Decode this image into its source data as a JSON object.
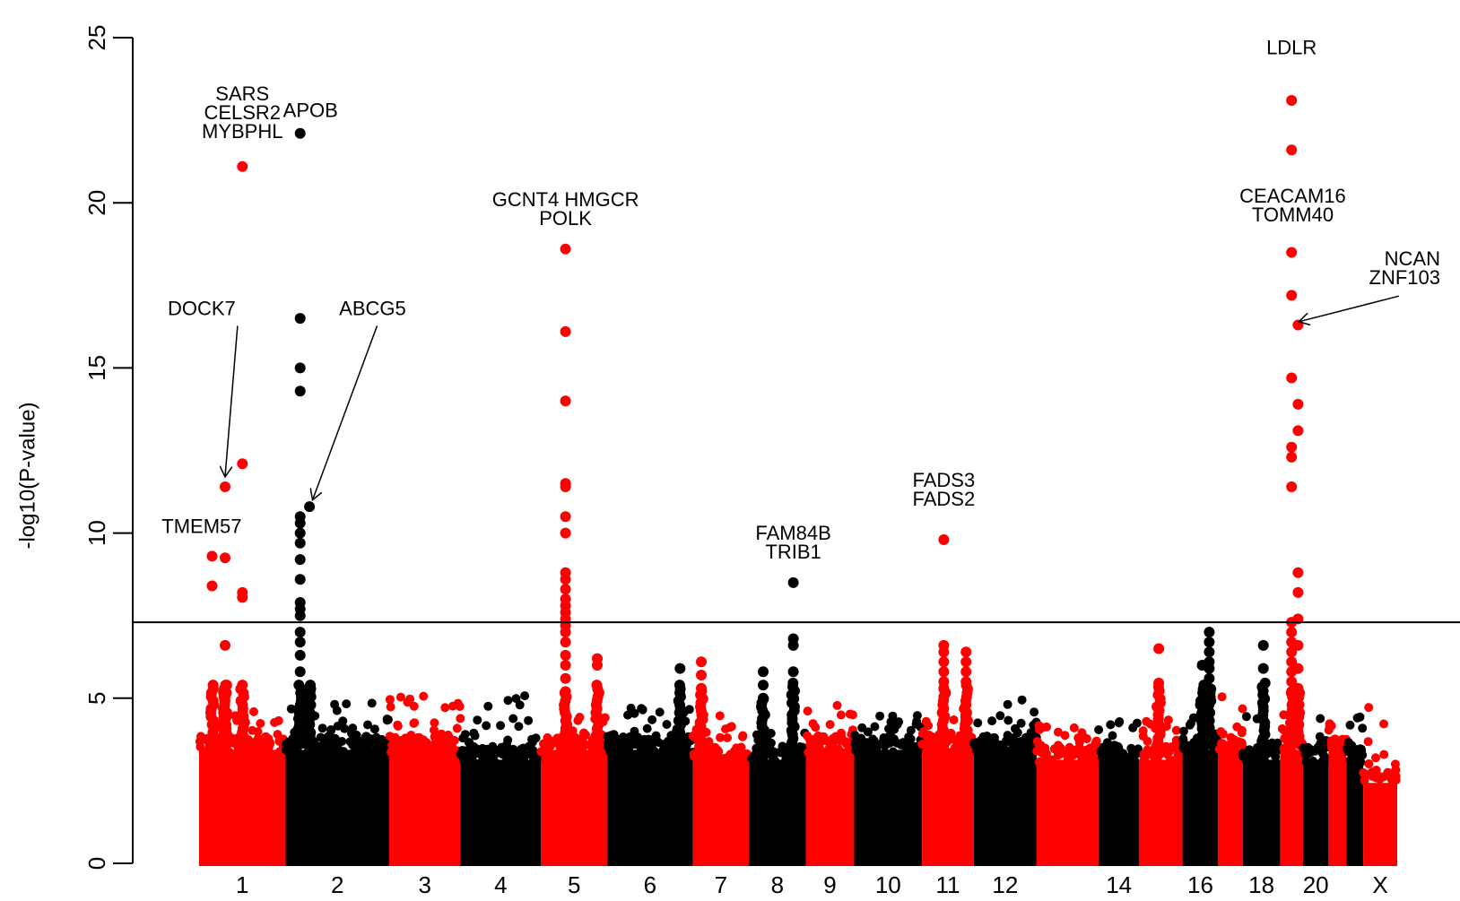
{
  "chart_data": {
    "type": "scatter",
    "subtype": "manhattan",
    "title": "",
    "xlabel": "",
    "ylabel": "-log10(P-value)",
    "ylim": [
      0,
      25
    ],
    "yticks": [
      0,
      5,
      10,
      15,
      20,
      25
    ],
    "grid": false,
    "significance_line": 7.3,
    "colors": {
      "odd": "#ff0000",
      "even": "#000000",
      "line": "#000000"
    },
    "chromosomes": [
      {
        "chrom": "1",
        "tick_label": "1",
        "color": "#ff0000",
        "baseline_max": 3.6,
        "scatter_max": 4.6,
        "peaks": [
          {
            "pos": 0.3,
            "values": [
              11.4,
              6.6
            ]
          },
          {
            "pos": 0.5,
            "values": [
              21.1,
              12.1,
              8.2,
              8.05,
              5.4
            ]
          },
          {
            "pos": 0.15,
            "values": [
              9.3,
              8.4
            ]
          },
          {
            "pos": 0.3,
            "values": [
              9.25
            ]
          }
        ]
      },
      {
        "chrom": "2",
        "tick_label": "2",
        "color": "#000000",
        "baseline_max": 3.6,
        "scatter_max": 4.9,
        "peaks": [
          {
            "pos": 0.14,
            "values": [
              22.1,
              16.5,
              15.0,
              14.3,
              10.5,
              10.3,
              10.0,
              9.7,
              9.2,
              8.6,
              7.9,
              7.7,
              7.5,
              7.0,
              6.7,
              6.3,
              5.8
            ]
          },
          {
            "pos": 0.23,
            "values": [
              10.8
            ]
          }
        ]
      },
      {
        "chrom": "3",
        "tick_label": "3",
        "color": "#ff0000",
        "baseline_max": 3.6,
        "scatter_max": 5.1,
        "peaks": []
      },
      {
        "chrom": "4",
        "tick_label": "4",
        "color": "#000000",
        "baseline_max": 3.3,
        "scatter_max": 5.5,
        "peaks": []
      },
      {
        "chrom": "5",
        "tick_label": "5",
        "color": "#ff0000",
        "baseline_max": 3.6,
        "scatter_max": 4.5,
        "peaks": [
          {
            "pos": 0.37,
            "values": [
              18.6,
              16.1,
              14.0,
              11.5,
              11.4,
              10.5,
              10.0,
              8.8,
              8.6,
              8.3,
              8.0,
              7.8,
              7.6,
              7.4,
              7.2,
              7.0,
              6.7,
              6.3,
              6.0,
              5.6,
              5.2
            ]
          },
          {
            "pos": 0.85,
            "values": [
              6.2,
              6.0
            ]
          }
        ]
      },
      {
        "chrom": "6",
        "tick_label": "6",
        "color": "#000000",
        "baseline_max": 3.6,
        "scatter_max": 4.8,
        "peaks": [
          {
            "pos": 0.85,
            "values": [
              5.9
            ]
          }
        ]
      },
      {
        "chrom": "7",
        "tick_label": "7",
        "color": "#ff0000",
        "baseline_max": 3.3,
        "scatter_max": 4.5,
        "peaks": [
          {
            "pos": 0.15,
            "values": [
              6.1,
              5.7,
              5.3
            ]
          }
        ]
      },
      {
        "chrom": "8",
        "tick_label": "8",
        "color": "#000000",
        "baseline_max": 3.3,
        "scatter_max": 4.2,
        "peaks": [
          {
            "pos": 0.78,
            "values": [
              8.5,
              6.8,
              6.6,
              5.8
            ]
          },
          {
            "pos": 0.25,
            "values": [
              5.8,
              5.4,
              5.0
            ]
          }
        ]
      },
      {
        "chrom": "9",
        "tick_label": "9",
        "color": "#ff0000",
        "baseline_max": 3.6,
        "scatter_max": 5.0,
        "peaks": []
      },
      {
        "chrom": "10",
        "tick_label": "10",
        "color": "#000000",
        "baseline_max": 3.6,
        "scatter_max": 4.6,
        "peaks": []
      },
      {
        "chrom": "11",
        "tick_label": "11",
        "color": "#ff0000",
        "baseline_max": 3.6,
        "scatter_max": 4.6,
        "peaks": [
          {
            "pos": 0.42,
            "values": [
              9.8,
              6.6,
              6.4,
              6.1,
              5.8,
              5.5,
              5.3
            ]
          },
          {
            "pos": 0.85,
            "values": [
              6.4,
              6.1,
              5.8,
              5.5
            ]
          }
        ]
      },
      {
        "chrom": "12",
        "tick_label": "12",
        "color": "#000000",
        "baseline_max": 3.6,
        "scatter_max": 5.0,
        "peaks": []
      },
      {
        "chrom": "13",
        "tick_label": "",
        "color": "#ff0000",
        "baseline_max": 3.3,
        "scatter_max": 4.2,
        "peaks": []
      },
      {
        "chrom": "14",
        "tick_label": "14",
        "color": "#000000",
        "baseline_max": 3.3,
        "scatter_max": 4.3,
        "peaks": []
      },
      {
        "chrom": "15",
        "tick_label": "",
        "color": "#ff0000",
        "baseline_max": 3.3,
        "scatter_max": 4.5,
        "peaks": [
          {
            "pos": 0.45,
            "values": [
              6.5
            ]
          }
        ]
      },
      {
        "chrom": "16",
        "tick_label": "16",
        "color": "#000000",
        "baseline_max": 3.6,
        "scatter_max": 4.5,
        "peaks": [
          {
            "pos": 0.75,
            "values": [
              7.0,
              6.7,
              6.4,
              6.1,
              5.9,
              5.6,
              5.3
            ]
          },
          {
            "pos": 0.55,
            "values": [
              6.0
            ]
          }
        ]
      },
      {
        "chrom": "17",
        "tick_label": "",
        "color": "#ff0000",
        "baseline_max": 3.6,
        "scatter_max": 5.2,
        "peaks": []
      },
      {
        "chrom": "18",
        "tick_label": "18",
        "color": "#000000",
        "baseline_max": 3.3,
        "scatter_max": 4.5,
        "peaks": [
          {
            "pos": 0.55,
            "values": [
              6.6,
              5.9
            ]
          }
        ]
      },
      {
        "chrom": "19",
        "tick_label": "",
        "color": "#ff0000",
        "baseline_max": 3.6,
        "scatter_max": 4.8,
        "peaks": [
          {
            "pos": 0.5,
            "values": [
              23.1,
              21.6,
              18.5,
              17.2,
              14.7,
              12.6,
              12.3,
              11.4,
              7.3,
              7.0,
              6.7,
              6.4,
              6.1,
              5.8,
              5.5,
              5.2
            ]
          },
          {
            "pos": 0.78,
            "values": [
              16.3,
              13.9,
              13.1,
              8.8,
              8.2,
              7.4,
              6.6,
              5.9,
              5.3
            ]
          }
        ]
      },
      {
        "chrom": "20",
        "tick_label": "20",
        "color": "#000000",
        "baseline_max": 3.3,
        "scatter_max": 4.6,
        "peaks": []
      },
      {
        "chrom": "21",
        "tick_label": "",
        "color": "#ff0000",
        "baseline_max": 3.6,
        "scatter_max": 4.4,
        "peaks": []
      },
      {
        "chrom": "22",
        "tick_label": "",
        "color": "#000000",
        "baseline_max": 3.3,
        "scatter_max": 4.7,
        "peaks": []
      },
      {
        "chrom": "X",
        "tick_label": "X",
        "color": "#ff0000",
        "baseline_max": 2.6,
        "scatter_max": 5.0,
        "peaks": []
      }
    ],
    "annotations": [
      {
        "lines": [
          "SARS",
          "CELSR2",
          "MYBPHL"
        ],
        "chrom": "1",
        "pos": 0.5,
        "y_top": 23.1
      },
      {
        "lines": [
          "APOB"
        ],
        "chrom": "2",
        "pos": 0.24,
        "y_top": 22.6
      },
      {
        "lines": [
          "GCNT4 HMGCR",
          "POLK"
        ],
        "chrom": "5",
        "pos": 0.37,
        "y_top": 19.9
      },
      {
        "lines": [
          "DOCK7"
        ],
        "chrom": "1",
        "pos": 0.03,
        "y_top": 16.6,
        "arrow_to": {
          "chrom": "1",
          "pos": 0.3,
          "y": 11.7
        }
      },
      {
        "lines": [
          "ABCG5"
        ],
        "chrom": "2",
        "pos": 0.84,
        "y_top": 16.6,
        "arrow_to": {
          "chrom": "2",
          "pos": 0.26,
          "y": 11.0
        }
      },
      {
        "lines": [
          "TMEM57"
        ],
        "chrom": "1",
        "pos": 0.03,
        "y_top": 10.0
      },
      {
        "lines": [
          "FAM84B",
          "TRIB1"
        ],
        "chrom": "8",
        "pos": 0.78,
        "y_top": 9.8
      },
      {
        "lines": [
          "FADS3",
          "FADS2"
        ],
        "chrom": "11",
        "pos": 0.42,
        "y_top": 11.4
      },
      {
        "lines": [
          "LDLR"
        ],
        "chrom": "19",
        "pos": 0.5,
        "y_top": 24.5
      },
      {
        "lines": [
          "CEACAM16",
          "TOMM40"
        ],
        "chrom": "19",
        "pos": 0.55,
        "y_top": 20.0
      },
      {
        "lines": [
          "NCAN",
          "ZNF103"
        ],
        "chrom": "20",
        "pos": 0.35,
        "y_top": 18.1,
        "arrow_to": {
          "chrom": "19",
          "pos": 0.82,
          "y": 16.4
        }
      }
    ]
  }
}
